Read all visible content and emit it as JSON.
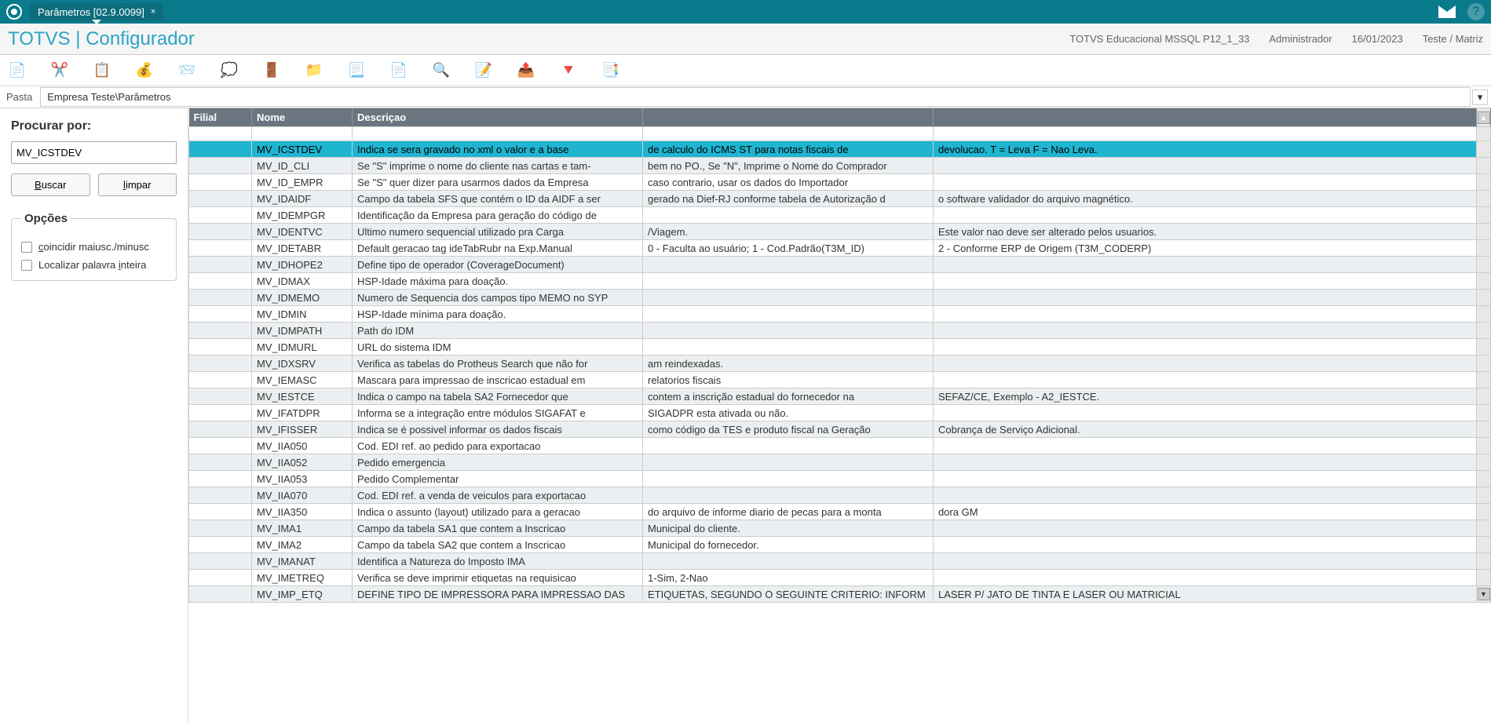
{
  "titlebar": {
    "tab_title": "Parâmetros [02.9.0099]",
    "tab_close": "×"
  },
  "header": {
    "app_title": "TOTVS | Configurador",
    "env": "TOTVS Educacional MSSQL P12_1_33",
    "user": "Administrador",
    "date": "16/01/2023",
    "company": "Teste / Matriz"
  },
  "breadcrumb": {
    "label": "Pasta",
    "path": "Empresa Teste\\Parâmetros"
  },
  "sidebar": {
    "search_label": "Procurar por:",
    "search_value": "MV_ICSTDEV",
    "btn_search": "Buscar",
    "btn_clear": "limpar",
    "options_title": "Opções",
    "opt_case": "coincidir maiusc./minusc",
    "opt_whole": "Localizar palavra inteira"
  },
  "table": {
    "columns": [
      "Filial",
      "Nome",
      "Descriçao",
      "",
      ""
    ],
    "rows": [
      {
        "filial": "",
        "nome": "MV_ICSTDEV",
        "d1": "Indica se sera gravado no xml o valor e a base",
        "d2": "de calculo do ICMS ST para notas fiscais de",
        "d3": "devolucao. T = Leva F = Nao Leva.",
        "sel": true
      },
      {
        "filial": "",
        "nome": "MV_ID_CLI",
        "d1": "Se \"S\" imprime o nome do cliente nas cartas e tam-",
        "d2": "bem no PO., Se \"N\", Imprime o Nome do Comprador",
        "d3": ""
      },
      {
        "filial": "",
        "nome": "MV_ID_EMPR",
        "d1": "Se \"S\" quer dizer para usarmos dados da Empresa",
        "d2": "caso contrario, usar os dados do Importador",
        "d3": ""
      },
      {
        "filial": "",
        "nome": "MV_IDAIDF",
        "d1": "Campo da tabela SFS que contém o ID da AIDF a ser",
        "d2": "gerado na Dief-RJ conforme tabela de Autorização d",
        "d3": "o software validador do arquivo magnético."
      },
      {
        "filial": "",
        "nome": "MV_IDEMPGR",
        "d1": "Identificação da Empresa para geração do código de",
        "d2": "",
        "d3": ""
      },
      {
        "filial": "",
        "nome": "MV_IDENTVC",
        "d1": "Ultimo numero sequencial utilizado pra Carga",
        "d2": "/Viagem.",
        "d3": "Este valor nao deve ser alterado pelos usuarios."
      },
      {
        "filial": "",
        "nome": "MV_IDETABR",
        "d1": "Default geracao tag ideTabRubr na Exp.Manual",
        "d2": "0 - Faculta ao usuário; 1 - Cod.Padrão(T3M_ID)",
        "d3": "2 - Conforme ERP de Origem (T3M_CODERP)"
      },
      {
        "filial": "",
        "nome": "MV_IDHOPE2",
        "d1": "Define tipo de operador (CoverageDocument)",
        "d2": "",
        "d3": ""
      },
      {
        "filial": "",
        "nome": "MV_IDMAX",
        "d1": "HSP-Idade máxima para doação.",
        "d2": "",
        "d3": ""
      },
      {
        "filial": "",
        "nome": "MV_IDMEMO",
        "d1": "Numero de Sequencia dos campos tipo MEMO no SYP",
        "d2": "",
        "d3": ""
      },
      {
        "filial": "",
        "nome": "MV_IDMIN",
        "d1": "HSP-Idade mínima para doação.",
        "d2": "",
        "d3": ""
      },
      {
        "filial": "",
        "nome": "MV_IDMPATH",
        "d1": "Path do IDM",
        "d2": "",
        "d3": ""
      },
      {
        "filial": "",
        "nome": "MV_IDMURL",
        "d1": "URL do sistema IDM",
        "d2": "",
        "d3": ""
      },
      {
        "filial": "",
        "nome": "MV_IDXSRV",
        "d1": "Verifica as tabelas do Protheus Search que não for",
        "d2": "am reindexadas.",
        "d3": ""
      },
      {
        "filial": "",
        "nome": "MV_IEMASC",
        "d1": "Mascara para impressao de inscricao estadual em",
        "d2": "relatorios fiscais",
        "d3": ""
      },
      {
        "filial": "",
        "nome": "MV_IESTCE",
        "d1": "Indica o campo na tabela SA2 Fornecedor que",
        "d2": "contem a inscrição estadual do fornecedor na",
        "d3": "SEFAZ/CE, Exemplo - A2_IESTCE."
      },
      {
        "filial": "",
        "nome": "MV_IFATDPR",
        "d1": "Informa se a integração entre módulos SIGAFAT e",
        "d2": "SIGADPR esta ativada ou não.",
        "d3": ""
      },
      {
        "filial": "",
        "nome": "MV_IFISSER",
        "d1": "Indica se é possivel informar os dados fiscais",
        "d2": "como código da TES e produto fiscal na Geração",
        "d3": "Cobrança de Serviço Adicional."
      },
      {
        "filial": "",
        "nome": "MV_IIA050",
        "d1": "Cod. EDI ref. ao pedido para exportacao",
        "d2": "",
        "d3": ""
      },
      {
        "filial": "",
        "nome": "MV_IIA052",
        "d1": "Pedido emergencia",
        "d2": "",
        "d3": ""
      },
      {
        "filial": "",
        "nome": "MV_IIA053",
        "d1": "Pedido Complementar",
        "d2": "",
        "d3": ""
      },
      {
        "filial": "",
        "nome": "MV_IIA070",
        "d1": "Cod. EDI ref. a venda de veiculos para exportacao",
        "d2": "",
        "d3": ""
      },
      {
        "filial": "",
        "nome": "MV_IIA350",
        "d1": "Indica o assunto (layout) utilizado para a geracao",
        "d2": "do arquivo de informe diario de pecas para a monta",
        "d3": "dora GM"
      },
      {
        "filial": "",
        "nome": "MV_IMA1",
        "d1": "Campo da tabela SA1 que contem a Inscricao",
        "d2": "Municipal do cliente.",
        "d3": ""
      },
      {
        "filial": "",
        "nome": "MV_IMA2",
        "d1": "Campo da tabela SA2 que contem a Inscricao",
        "d2": "Municipal do fornecedor.",
        "d3": ""
      },
      {
        "filial": "",
        "nome": "MV_IMANAT",
        "d1": "Identifica a Natureza do Imposto IMA",
        "d2": "",
        "d3": ""
      },
      {
        "filial": "",
        "nome": "MV_IMETREQ",
        "d1": "Verifica se deve imprimir etiquetas na requisicao",
        "d2": "1-Sim, 2-Nao",
        "d3": ""
      },
      {
        "filial": "",
        "nome": "MV_IMP_ETQ",
        "d1": "DEFINE TIPO DE IMPRESSORA PARA IMPRESSAO DAS",
        "d2": "ETIQUETAS, SEGUNDO O SEGUINTE CRITERIO: INFORM",
        "d3": "LASER P/ JATO DE TINTA E LASER OU MATRICIAL"
      }
    ]
  }
}
